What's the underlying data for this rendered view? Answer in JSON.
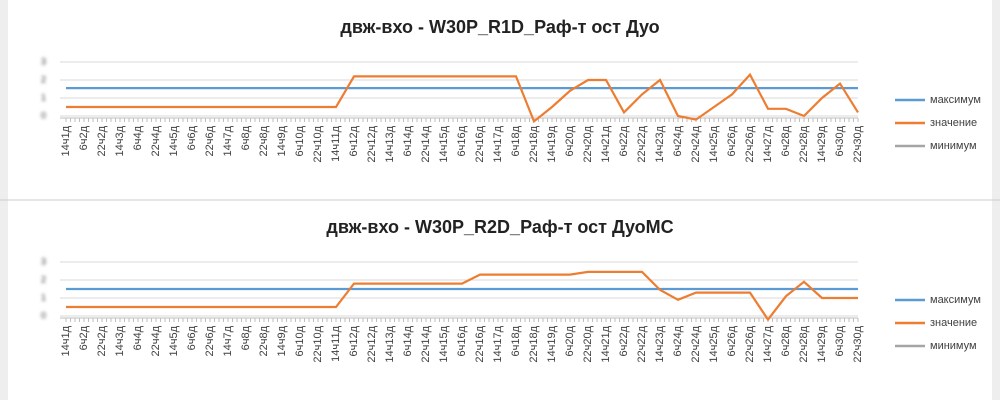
{
  "chart_data": [
    {
      "type": "line",
      "title": "двж-вхо - W30P_R1D_Раф-т ост Дуо",
      "categories": [
        "14ч1д",
        "6ч2д",
        "22ч2д",
        "14ч3д",
        "6ч4д",
        "22ч4д",
        "14ч5д",
        "6ч6д",
        "22ч6д",
        "14ч7д",
        "6ч8д",
        "22ч8д",
        "14ч9д",
        "6ч10д",
        "22ч10д",
        "14ч11д",
        "6ч12д",
        "22ч12д",
        "14ч13д",
        "6ч14д",
        "22ч14д",
        "14ч15д",
        "6ч16д",
        "22ч16д",
        "14ч17д",
        "6ч18д",
        "22ч18д",
        "14ч19д",
        "6ч20д",
        "22ч20д",
        "14ч21д",
        "6ч22д",
        "22ч22д",
        "14ч23д",
        "6ч24д",
        "22ч24д",
        "14ч25д",
        "6ч26д",
        "22ч26д",
        "14ч27д",
        "6ч28д",
        "22ч28д",
        "14ч29д",
        "6ч30д",
        "22ч30д"
      ],
      "series": [
        {
          "name": "максимум",
          "color": "#5b9bd5",
          "values": [
            1.55,
            1.55,
            1.55,
            1.55,
            1.55,
            1.55,
            1.55,
            1.55,
            1.55,
            1.55,
            1.55,
            1.55,
            1.55,
            1.55,
            1.55,
            1.55,
            1.55,
            1.55,
            1.55,
            1.55,
            1.55,
            1.55,
            1.55,
            1.55,
            1.55,
            1.55,
            1.55,
            1.55,
            1.55,
            1.55,
            1.55,
            1.55,
            1.55,
            1.55,
            1.55,
            1.55,
            1.55,
            1.55,
            1.55,
            1.55,
            1.55,
            1.55,
            1.55,
            1.55,
            1.55
          ]
        },
        {
          "name": "значение",
          "color": "#ed7d31",
          "values": [
            0.5,
            0.5,
            0.5,
            0.5,
            0.5,
            0.5,
            0.5,
            0.5,
            0.5,
            0.5,
            0.5,
            0.5,
            0.5,
            0.5,
            0.5,
            0.5,
            2.2,
            2.2,
            2.2,
            2.2,
            2.2,
            2.2,
            2.2,
            2.2,
            2.2,
            2.2,
            -0.3,
            0.5,
            1.4,
            2.0,
            2.0,
            0.2,
            1.2,
            2.0,
            0.0,
            -0.2,
            0.5,
            1.2,
            2.3,
            0.4,
            0.4,
            0.0,
            1.0,
            1.8,
            0.2
          ]
        },
        {
          "name": "минимум",
          "color": "#a5a5a5",
          "values": [
            null,
            null,
            null,
            null,
            null,
            null,
            null,
            null,
            null,
            null,
            null,
            null,
            null,
            null,
            null,
            null,
            null,
            null,
            null,
            null,
            null,
            null,
            null,
            null,
            null,
            null,
            null,
            null,
            null,
            null,
            null,
            null,
            null,
            null,
            null,
            null,
            null,
            null,
            null,
            null,
            null,
            null,
            null,
            null,
            null
          ]
        }
      ],
      "ylim": [
        0,
        3
      ],
      "yticks": [
        0,
        1,
        2,
        3
      ],
      "grid": true,
      "legend": "right"
    },
    {
      "type": "line",
      "title": "двж-вхо - W30P_R2D_Раф-т ост ДуоМС",
      "categories": [
        "14ч1д",
        "6ч2д",
        "22ч2д",
        "14ч3д",
        "6ч4д",
        "22ч4д",
        "14ч5д",
        "6ч6д",
        "22ч6д",
        "14ч7д",
        "6ч8д",
        "22ч8д",
        "14ч9д",
        "6ч10д",
        "22ч10д",
        "14ч11д",
        "6ч12д",
        "22ч12д",
        "14ч13д",
        "6ч14д",
        "22ч14д",
        "14ч15д",
        "6ч16д",
        "22ч16д",
        "14ч17д",
        "6ч18д",
        "22ч18д",
        "14ч19д",
        "6ч20д",
        "22ч20д",
        "14ч21д",
        "6ч22д",
        "22ч22д",
        "14ч23д",
        "6ч24д",
        "22ч24д",
        "14ч25д",
        "6ч26д",
        "22ч26д",
        "14ч27д",
        "6ч28д",
        "22ч28д",
        "14ч29д",
        "6ч30д",
        "22ч30д"
      ],
      "series": [
        {
          "name": "максимум",
          "color": "#5b9bd5",
          "values": [
            1.5,
            1.5,
            1.5,
            1.5,
            1.5,
            1.5,
            1.5,
            1.5,
            1.5,
            1.5,
            1.5,
            1.5,
            1.5,
            1.5,
            1.5,
            1.5,
            1.5,
            1.5,
            1.5,
            1.5,
            1.5,
            1.5,
            1.5,
            1.5,
            1.5,
            1.5,
            1.5,
            1.5,
            1.5,
            1.5,
            1.5,
            1.5,
            1.5,
            1.5,
            1.5,
            1.5,
            1.5,
            1.5,
            1.5,
            1.5,
            1.5,
            1.5,
            1.5,
            1.5,
            1.5
          ]
        },
        {
          "name": "значение",
          "color": "#ed7d31",
          "values": [
            0.5,
            0.5,
            0.5,
            0.5,
            0.5,
            0.5,
            0.5,
            0.5,
            0.5,
            0.5,
            0.5,
            0.5,
            0.5,
            0.5,
            0.5,
            0.5,
            1.8,
            1.8,
            1.8,
            1.8,
            1.8,
            1.8,
            1.8,
            2.3,
            2.3,
            2.3,
            2.3,
            2.3,
            2.3,
            2.45,
            2.45,
            2.45,
            2.45,
            1.45,
            0.9,
            1.3,
            1.3,
            1.3,
            1.3,
            -0.2,
            1.1,
            1.9,
            1.0,
            1.0,
            1.0
          ]
        },
        {
          "name": "минимум",
          "color": "#a5a5a5",
          "values": [
            null,
            null,
            null,
            null,
            null,
            null,
            null,
            null,
            null,
            null,
            null,
            null,
            null,
            null,
            null,
            null,
            null,
            null,
            null,
            null,
            null,
            null,
            null,
            null,
            null,
            null,
            null,
            null,
            null,
            null,
            null,
            null,
            null,
            null,
            null,
            null,
            null,
            null,
            null,
            null,
            null,
            null,
            null,
            null,
            null
          ]
        }
      ],
      "ylim": [
        0,
        3
      ],
      "yticks": [
        0,
        1,
        2,
        3
      ],
      "grid": true,
      "legend": "right"
    }
  ]
}
